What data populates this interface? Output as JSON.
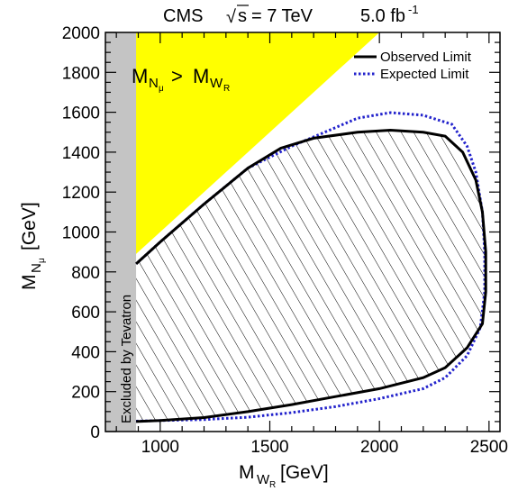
{
  "chart_data": {
    "type": "line",
    "header": {
      "experiment": "CMS",
      "sqrt_symbol": "√",
      "energy_var": "s",
      "energy_value": "= 7 TeV",
      "luminosity": "5.0 fb",
      "luminosity_exp": "-1"
    },
    "xlabel": {
      "main": "M",
      "sub": "W",
      "subsub": "R",
      "unit": "[GeV]"
    },
    "ylabel": {
      "main": "M",
      "sub": "N",
      "subsub": "μ",
      "unit": "[GeV]"
    },
    "xlim": [
      750,
      2550
    ],
    "ylim": [
      0,
      2000
    ],
    "xticks": [
      1000,
      1500,
      2000,
      2500
    ],
    "yticks": [
      0,
      200,
      400,
      600,
      800,
      1000,
      1200,
      1400,
      1600,
      1800,
      2000
    ],
    "legend": {
      "position": "top-right",
      "entries": [
        {
          "label": "Observed Limit",
          "color": "#000000",
          "style": "solid"
        },
        {
          "label": "Expected Limit",
          "color": "#2323cc",
          "style": "dotted"
        }
      ]
    },
    "annotations": {
      "kinematic_region": {
        "main": "M",
        "sub1": "N",
        "sub1sub": "μ",
        "op": ">",
        "sub2": "W",
        "sub2sub": "R"
      },
      "tevatron": "Excluded by Tevatron"
    },
    "colors": {
      "kinematic_fill": "#ffff00",
      "tevatron_fill": "#c4c4c4",
      "observed": "#000000",
      "expected": "#2323cc",
      "hatch": "#000000"
    },
    "regions": {
      "kinematic_forbidden": [
        [
          750,
          750
        ],
        [
          2000,
          2000
        ],
        [
          750,
          2000
        ]
      ],
      "tevatron_excluded": {
        "x_max": 890
      }
    },
    "series": [
      {
        "name": "Observed Limit",
        "points": [
          [
            890,
            50
          ],
          [
            1000,
            55
          ],
          [
            1200,
            70
          ],
          [
            1400,
            100
          ],
          [
            1600,
            135
          ],
          [
            1800,
            175
          ],
          [
            2000,
            215
          ],
          [
            2200,
            270
          ],
          [
            2300,
            320
          ],
          [
            2400,
            420
          ],
          [
            2470,
            540
          ],
          [
            2485,
            700
          ],
          [
            2485,
            900
          ],
          [
            2470,
            1100
          ],
          [
            2440,
            1260
          ],
          [
            2380,
            1400
          ],
          [
            2300,
            1480
          ],
          [
            2200,
            1500
          ],
          [
            2050,
            1510
          ],
          [
            1900,
            1500
          ],
          [
            1700,
            1470
          ],
          [
            1550,
            1420
          ],
          [
            1400,
            1320
          ],
          [
            1200,
            1140
          ],
          [
            1000,
            950
          ],
          [
            890,
            840
          ]
        ]
      },
      {
        "name": "Expected Limit",
        "points": [
          [
            890,
            52
          ],
          [
            1000,
            55
          ],
          [
            1200,
            60
          ],
          [
            1400,
            72
          ],
          [
            1600,
            95
          ],
          [
            1800,
            125
          ],
          [
            2000,
            165
          ],
          [
            2200,
            215
          ],
          [
            2300,
            270
          ],
          [
            2400,
            380
          ],
          [
            2460,
            520
          ],
          [
            2480,
            700
          ],
          [
            2480,
            900
          ],
          [
            2470,
            1100
          ],
          [
            2440,
            1300
          ],
          [
            2400,
            1430
          ],
          [
            2330,
            1540
          ],
          [
            2200,
            1585
          ],
          [
            2050,
            1598
          ],
          [
            1900,
            1570
          ],
          [
            1750,
            1500
          ],
          [
            1600,
            1430
          ],
          [
            1400,
            1320
          ],
          [
            1200,
            1140
          ],
          [
            1000,
            950
          ],
          [
            890,
            840
          ]
        ]
      }
    ]
  }
}
